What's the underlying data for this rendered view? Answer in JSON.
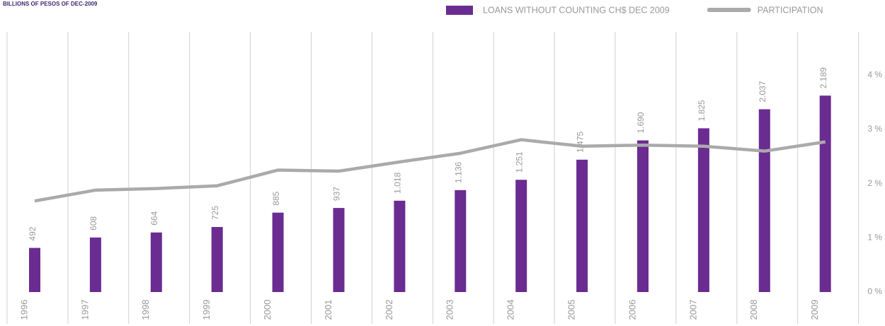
{
  "chart_data": {
    "type": "bar",
    "title": "BILLIONS OF PESOS OF DEC-2009",
    "categories": [
      "1996",
      "1997",
      "1998",
      "1999",
      "2000",
      "2001",
      "2002",
      "2003",
      "2004",
      "2005",
      "2006",
      "2007",
      "2008",
      "2009"
    ],
    "series": [
      {
        "name": "LOANS WITHOUT COUNTING CH$ DEC 2009",
        "type": "bar",
        "color": "#6a2c91",
        "values": [
          492,
          608,
          664,
          725,
          885,
          937,
          1018,
          1136,
          1251,
          1475,
          1690,
          1825,
          2037,
          2189
        ],
        "value_labels": [
          "492",
          "608",
          "664",
          "725",
          "885",
          "937",
          "1.018",
          "1.136",
          "1.251",
          "1.475",
          "1.690",
          "1.825",
          "2.037",
          "2.189"
        ]
      },
      {
        "name": "PARTICIPATION",
        "type": "line",
        "axis": "y2",
        "color": "#aaaaab",
        "values": [
          1.68,
          1.88,
          1.91,
          1.96,
          2.25,
          2.23,
          2.4,
          2.56,
          2.81,
          2.69,
          2.71,
          2.69,
          2.6,
          2.77
        ]
      }
    ],
    "ylim": [
      0,
      2900
    ],
    "y2lim": [
      0,
      4.8
    ],
    "y2ticks": [
      {
        "value": 0,
        "label": "0 %"
      },
      {
        "value": 1,
        "label": "1 %"
      },
      {
        "value": 2,
        "label": "2 %"
      },
      {
        "value": 3,
        "label": "3 %"
      },
      {
        "value": 4,
        "label": "4 %"
      }
    ],
    "grid": true,
    "legend": "top-right"
  }
}
